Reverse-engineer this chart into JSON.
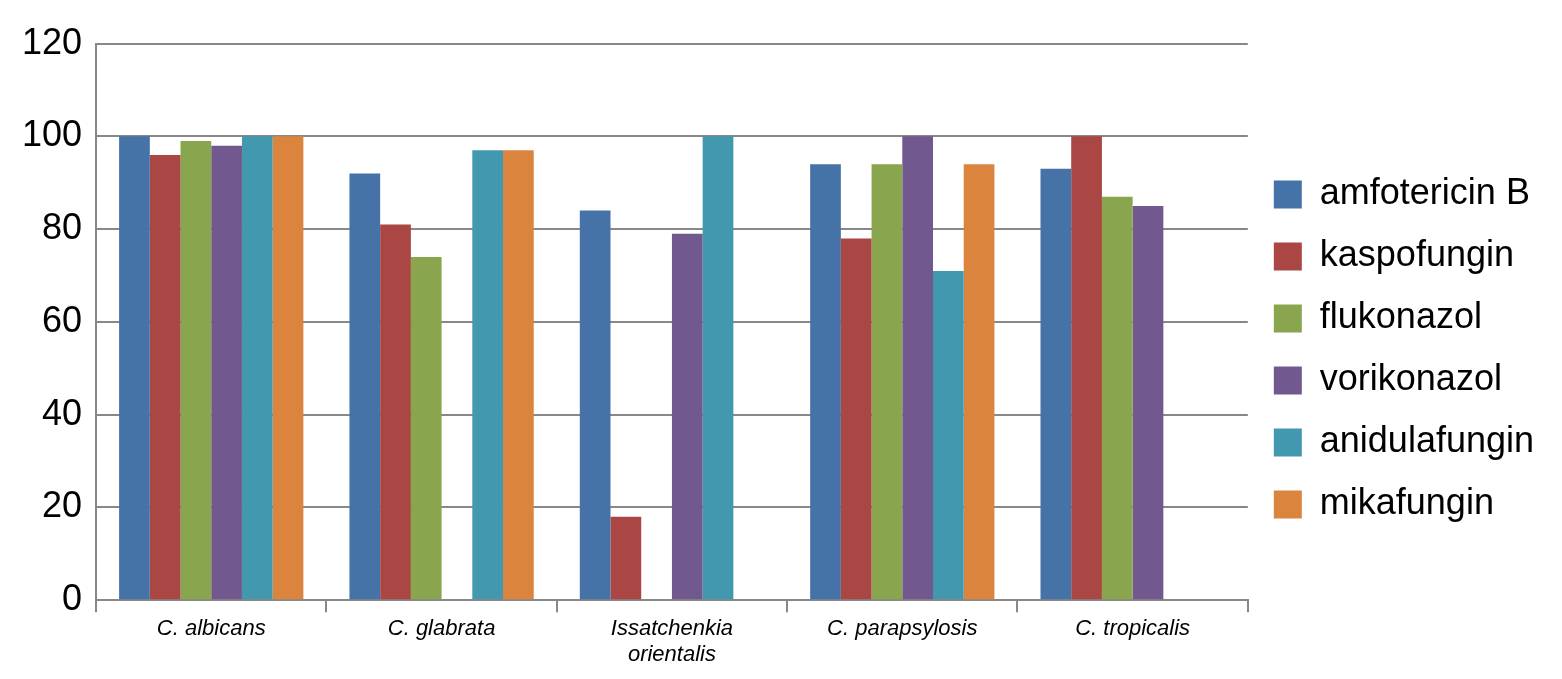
{
  "chart_data": {
    "type": "bar",
    "categories": [
      "C. albicans",
      "C. glabrata",
      "Issatchenkia orientalis",
      "C. parapsylosis",
      "C. tropicalis"
    ],
    "series": [
      {
        "name": "amfotericin B",
        "color": "#4572a7",
        "values": [
          100,
          92,
          84,
          94,
          93
        ]
      },
      {
        "name": "kaspofungin",
        "color": "#aa4643",
        "values": [
          96,
          81,
          18,
          78,
          100
        ]
      },
      {
        "name": "flukonazol",
        "color": "#89a54e",
        "values": [
          99,
          74,
          null,
          94,
          87
        ]
      },
      {
        "name": "vorikonazol",
        "color": "#71588f",
        "values": [
          98,
          null,
          79,
          100,
          85
        ]
      },
      {
        "name": "anidulafungin",
        "color": "#4198af",
        "values": [
          100,
          97,
          100,
          71,
          null
        ]
      },
      {
        "name": "mikafungin",
        "color": "#db843d",
        "values": [
          100,
          97,
          null,
          94,
          null
        ]
      }
    ],
    "ylim": [
      0,
      120
    ],
    "yticks": [
      0,
      20,
      40,
      60,
      80,
      100,
      120
    ],
    "grid": "y",
    "legend": "right"
  }
}
